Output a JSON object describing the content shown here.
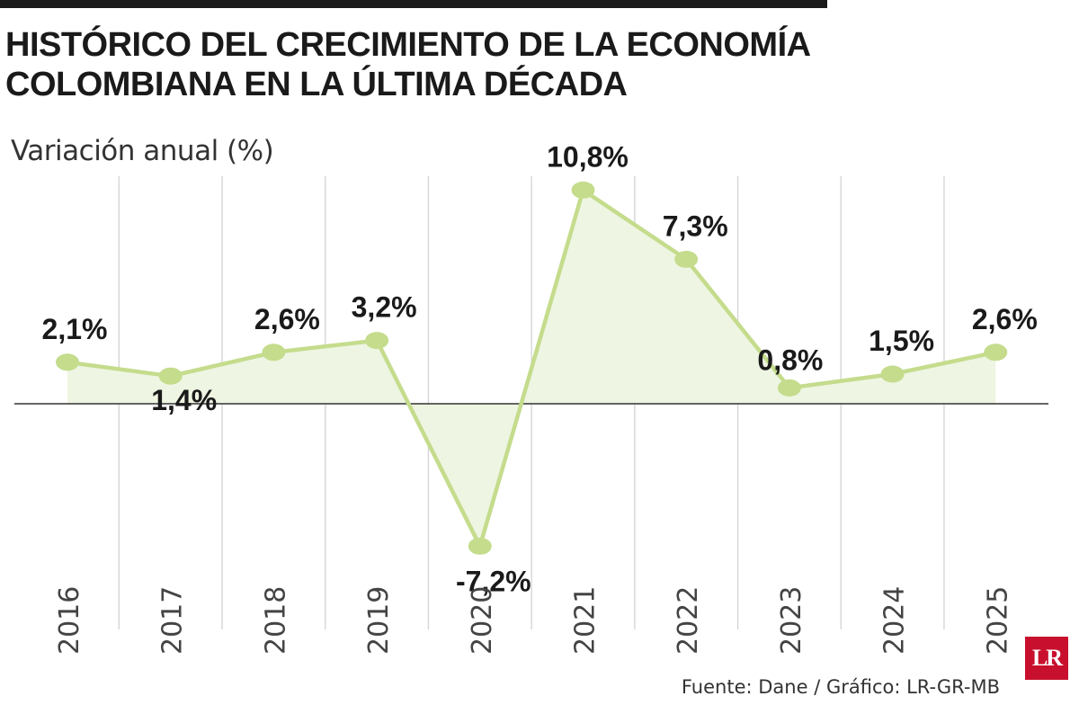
{
  "title_lines": [
    "HISTÓRICO DEL CRECIMIENTO DE LA ECONOMÍA",
    "COLOMBIANA EN LA ÚLTIMA DÉCADA"
  ],
  "source": "Fuente: Dane / Gráfico: LR-GR-MB",
  "logo_text": "LR",
  "colors": {
    "line": "#c4dc8c",
    "point": "#c4dc8c",
    "area": "#eef5e2",
    "grid": "#d6d6d6",
    "axis": "#333333",
    "logo": "#c8102e"
  },
  "chart_data": {
    "type": "line",
    "ylabel": "Variación anual (%)",
    "x": [
      "2016",
      "2017",
      "2018",
      "2019",
      "2020",
      "2021",
      "2022",
      "2023",
      "2024",
      "2025"
    ],
    "series": [
      {
        "values": [
          2.1,
          1.4,
          2.6,
          3.2,
          -7.2,
          10.8,
          7.3,
          0.8,
          1.5,
          2.6
        ],
        "labels": [
          "2,1%",
          "1,4%",
          "2,6%",
          "3,2%",
          "-7,2%",
          "10,8%",
          "7,3%",
          "0,8%",
          "1,5%",
          "2,6%"
        ]
      }
    ],
    "ylim": [
      -8.5,
      11.5
    ],
    "grid": "vertical",
    "legend": "none"
  }
}
